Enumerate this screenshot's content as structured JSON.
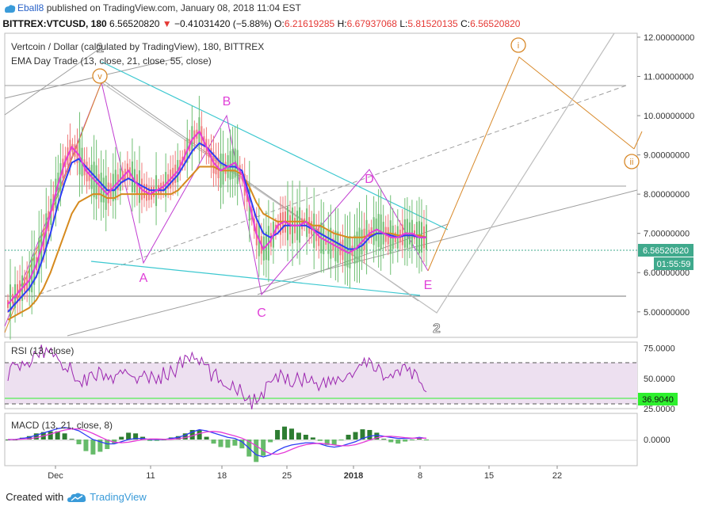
{
  "header": {
    "user": "Eball8",
    "published_text": "published on TradingView.com, January 08, 2018 11:04 EST"
  },
  "ticker": {
    "symbol": "BITTREX:VTCUSD, 180",
    "last": "6.56520820",
    "change": "−0.41031420 (−5.88%)",
    "o_label": "O:",
    "o": "6.21619285",
    "h_label": "H:",
    "h": "6.67937068",
    "l_label": "L:",
    "l": "5.81520135",
    "c_label": "C:",
    "c": "6.56520820"
  },
  "main_pane": {
    "title": "Vertcoin / Dollar (calculated by TradingView), 180, BITTREX",
    "indicator_label": "EMA Day Trade (13, close, 21, close, 55, close)",
    "price_badge": "6.56520820",
    "time_badge": "01:55:59"
  },
  "rsi_pane": {
    "label": "RSI (13, close)",
    "value_badge": "36.9040",
    "ticks": [
      "75.0000",
      "50.0000",
      "25.0000"
    ]
  },
  "macd_pane": {
    "label": "MACD (13, 21, close, 8)",
    "ticks": [
      "0.0000"
    ]
  },
  "annotations": {
    "wave_A": "A",
    "wave_B": "B",
    "wave_C": "C",
    "wave_D": "D",
    "wave_E": "E",
    "wave_1": "1",
    "wave_2": "2",
    "circle_v": "v",
    "circle_i": "i",
    "circle_ii": "ii"
  },
  "footer": {
    "created_with": "Created with",
    "brand": "TradingView"
  },
  "colors": {
    "ema_fast": "#e53ad8",
    "ema_mid": "#2d3cf5",
    "ema_slow": "#d68a1e",
    "wave_purple": "#c13dd1",
    "trendline_cyan": "#3cc8d0",
    "orange": "#d8892a",
    "rsi_line": "#9c27b0",
    "rsi_bg": "#ede0f0",
    "green_badge": "#2ef02e",
    "price_badge": "#3fa98c"
  },
  "chart_data": [
    {
      "type": "line",
      "pane": "price",
      "y_ticks": [
        "12.00000000",
        "11.00000000",
        "10.00000000",
        "9.00000000",
        "8.00000000",
        "7.00000000",
        "6.00000000",
        "5.00000000"
      ],
      "ylim": [
        4.35,
        12.1
      ],
      "x_ticks": [
        "Dec",
        "11",
        "18",
        "25",
        "2018",
        "8",
        "15",
        "22"
      ],
      "wave_points": [
        {
          "label": "1",
          "time": "Dec 5",
          "price": 10.8
        },
        {
          "label": "A",
          "time": "Dec 10",
          "price": 6.3
        },
        {
          "label": "B",
          "time": "Dec 18",
          "price": 10.0
        },
        {
          "label": "C",
          "time": "Dec 22",
          "price": 5.4
        },
        {
          "label": "D",
          "time": "Jan 2",
          "price": 8.1
        },
        {
          "label": "E",
          "time": "Jan 8",
          "price": 6.1
        },
        {
          "label": "2",
          "time": "Jan 9",
          "price": 5.0
        },
        {
          "label": "i",
          "time": "Jan 18",
          "price": 11.4
        },
        {
          "label": "ii",
          "time": "Jan 29",
          "price": 9.1
        }
      ],
      "series": [
        {
          "values": [
            5.2,
            5.4,
            5.6,
            5.8,
            6.2,
            6.8,
            7.5,
            8.2,
            8.8,
            9.2,
            9.0,
            8.6,
            8.4,
            8.2,
            8.0,
            8.2,
            8.4,
            8.6,
            8.3,
            8.1,
            8.0,
            8.1,
            8.2,
            8.4,
            8.6,
            9.0,
            9.4,
            9.6,
            9.2,
            8.8,
            8.6,
            8.7,
            8.8,
            8.5,
            7.8,
            7.0,
            6.6,
            6.8,
            7.2,
            7.3,
            7.2,
            7.2,
            7.3,
            7.1,
            6.9,
            6.8,
            6.7,
            6.6,
            6.5,
            6.6,
            6.8,
            7.0,
            7.1,
            7.0,
            6.9,
            6.9,
            7.0,
            7.0,
            6.9,
            6.9
          ]
        },
        {
          "values": [
            5.0,
            5.2,
            5.4,
            5.6,
            5.9,
            6.4,
            7.0,
            7.7,
            8.3,
            8.8,
            8.9,
            8.7,
            8.5,
            8.3,
            8.1,
            8.1,
            8.3,
            8.4,
            8.3,
            8.2,
            8.1,
            8.1,
            8.1,
            8.3,
            8.5,
            8.8,
            9.1,
            9.3,
            9.2,
            9.0,
            8.8,
            8.7,
            8.7,
            8.6,
            8.0,
            7.4,
            7.0,
            6.9,
            7.0,
            7.2,
            7.2,
            7.2,
            7.2,
            7.1,
            7.0,
            6.9,
            6.8,
            6.7,
            6.6,
            6.6,
            6.7,
            6.9,
            7.0,
            7.0,
            6.95,
            6.9,
            6.95,
            6.95,
            6.9,
            6.9
          ]
        },
        {
          "values": [
            4.8,
            4.9,
            5.0,
            5.1,
            5.3,
            5.6,
            6.0,
            6.5,
            7.0,
            7.5,
            7.8,
            7.9,
            8.0,
            8.0,
            7.9,
            7.9,
            8.0,
            8.0,
            8.0,
            8.0,
            8.0,
            8.0,
            8.0,
            8.0,
            8.1,
            8.3,
            8.5,
            8.7,
            8.7,
            8.7,
            8.6,
            8.6,
            8.6,
            8.5,
            8.2,
            7.8,
            7.5,
            7.4,
            7.3,
            7.3,
            7.3,
            7.3,
            7.3,
            7.2,
            7.2,
            7.1,
            7.0,
            6.95,
            6.9,
            6.9,
            6.9,
            6.95,
            7.0,
            7.0,
            7.0,
            6.95,
            6.95,
            6.95,
            6.95,
            6.9
          ]
        }
      ]
    },
    {
      "type": "line",
      "pane": "rsi",
      "ylim": [
        25,
        80
      ],
      "y_ticks": [
        "75.0000",
        "50.0000",
        "25.0000"
      ],
      "values": [
        55,
        60,
        58,
        65,
        70,
        72,
        74,
        68,
        62,
        55,
        50,
        48,
        52,
        55,
        50,
        48,
        52,
        55,
        53,
        50,
        49,
        51,
        53,
        55,
        60,
        65,
        68,
        64,
        58,
        52,
        48,
        47,
        44,
        40,
        32,
        30,
        38,
        45,
        50,
        52,
        50,
        49,
        51,
        48,
        46,
        45,
        47,
        50,
        52,
        55,
        60,
        62,
        58,
        55,
        52,
        53,
        55,
        54,
        52,
        37
      ]
    },
    {
      "type": "line",
      "pane": "macd",
      "ylim": [
        -1.2,
        1.2
      ],
      "y_ticks": [
        "0.0000"
      ],
      "values": [
        0.0,
        0.0,
        0.05,
        0.1,
        0.2,
        0.3,
        0.4,
        0.5,
        0.55,
        0.5,
        0.4,
        0.2,
        0.0,
        -0.1,
        -0.2,
        -0.2,
        -0.1,
        0.0,
        0.05,
        0.05,
        0.0,
        0.0,
        0.0,
        0.05,
        0.1,
        0.2,
        0.35,
        0.45,
        0.4,
        0.3,
        0.2,
        0.1,
        0.05,
        -0.1,
        -0.4,
        -0.7,
        -0.8,
        -0.7,
        -0.5,
        -0.35,
        -0.25,
        -0.2,
        -0.15,
        -0.15,
        -0.2,
        -0.3,
        -0.35,
        -0.3,
        -0.2,
        -0.1,
        0.05,
        0.15,
        0.2,
        0.15,
        0.1,
        0.05,
        0.05,
        0.05,
        0.1,
        0.05
      ]
    }
  ]
}
